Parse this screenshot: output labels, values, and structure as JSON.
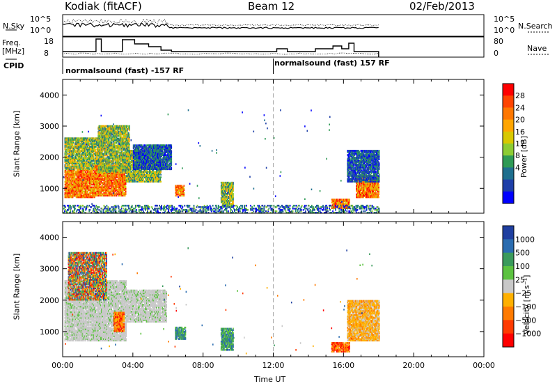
{
  "header": {
    "radar": "Kodiak (fitACF)",
    "beam": "Beam 12",
    "date": "02/Feb/2013"
  },
  "summary": {
    "nsky_label": "N.Sky",
    "nsearch_label": "N.Search",
    "nsky_ticks": [
      "10^5",
      "10^0"
    ],
    "nsearch_ticks": [
      "10^5",
      "10^0"
    ],
    "freq_label": "Freq.",
    "freq_unit": "[MHz]",
    "freq_ticks": [
      "18",
      "8"
    ],
    "nave_label": "Nave",
    "nave_ticks": [
      "80",
      "0"
    ],
    "cpid_label": "CPID",
    "cpid_segments": [
      {
        "label": "normalsound (fast) -157 RF",
        "start_hour": 0,
        "end_hour": 12
      },
      {
        "label": "normalsound (fast) 157 RF",
        "start_hour": 12,
        "end_hour": 24
      }
    ]
  },
  "chart_data": [
    {
      "type": "heatmap",
      "name": "power-panel",
      "ylabel": "Slant Range [km]",
      "xlabel": "",
      "x_range_hours": [
        0,
        24
      ],
      "ylim": [
        200,
        4500
      ],
      "yticks": [
        "1000",
        "2000",
        "3000",
        "4000"
      ],
      "colorbar": {
        "label": "Power [dB]",
        "ticks": [
          "28",
          "24",
          "20",
          "16",
          "12",
          "8",
          "4"
        ],
        "colors": [
          "#ff0000",
          "#ff4400",
          "#ff7700",
          "#ffa500",
          "#d8c800",
          "#8ccc33",
          "#2e9a55",
          "#1e6f8e",
          "#1e3fa8",
          "#0000ff"
        ]
      },
      "regions": [
        {
          "t0": 0.1,
          "t1": 1.8,
          "r0": 700,
          "r1": 1600,
          "level": "high"
        },
        {
          "t0": 0.1,
          "t1": 2.0,
          "r0": 1600,
          "r1": 2600,
          "level": "mid"
        },
        {
          "t0": 1.8,
          "t1": 3.6,
          "r0": 750,
          "r1": 1700,
          "level": "high"
        },
        {
          "t0": 2.0,
          "t1": 3.8,
          "r0": 1500,
          "r1": 3000,
          "level": "mid"
        },
        {
          "t0": 3.6,
          "t1": 5.6,
          "r0": 1200,
          "r1": 2200,
          "level": "mid"
        },
        {
          "t0": 4.0,
          "t1": 6.2,
          "r0": 1600,
          "r1": 2400,
          "level": "low"
        },
        {
          "t0": 6.4,
          "t1": 6.9,
          "r0": 750,
          "r1": 1100,
          "level": "high"
        },
        {
          "t0": 9.0,
          "t1": 9.7,
          "r0": 400,
          "r1": 1200,
          "level": "mid"
        },
        {
          "t0": 15.3,
          "t1": 16.3,
          "r0": 350,
          "r1": 650,
          "level": "high"
        },
        {
          "t0": 16.7,
          "t1": 18.0,
          "r0": 700,
          "r1": 1400,
          "level": "high"
        },
        {
          "t0": 16.2,
          "t1": 18.0,
          "r0": 1200,
          "r1": 2200,
          "level": "low"
        },
        {
          "t0": 0.0,
          "t1": 18.0,
          "r0": 200,
          "r1": 450,
          "level": "ground"
        }
      ]
    },
    {
      "type": "heatmap",
      "name": "velocity-panel",
      "ylabel": "Slant Range [km]",
      "xlabel": "Time UT",
      "x_range_hours": [
        0,
        24
      ],
      "xticks": [
        "00:00",
        "04:00",
        "08:00",
        "12:00",
        "16:00",
        "20:00",
        "00:00"
      ],
      "ylim": [
        200,
        4500
      ],
      "yticks": [
        "1000",
        "2000",
        "3000",
        "4000"
      ],
      "colorbar": {
        "label": "Velocity [m s⁻¹]",
        "ticks": [
          "1000",
          "500",
          "100",
          "25",
          "−25",
          "−100",
          "−500",
          "−1000"
        ],
        "colors": [
          "#1f3fa0",
          "#2a6cb0",
          "#3a9a5c",
          "#5cc240",
          "#c8c8c8",
          "#ffb000",
          "#ff7a00",
          "#ff3a00",
          "#ff0000"
        ]
      },
      "regions": [
        {
          "t0": 0.1,
          "t1": 3.6,
          "r0": 700,
          "r1": 2600,
          "level": "ground"
        },
        {
          "t0": 3.6,
          "t1": 5.9,
          "r0": 1300,
          "r1": 2300,
          "level": "ground"
        },
        {
          "t0": 2.9,
          "t1": 3.5,
          "r0": 1000,
          "r1": 1600,
          "level": "neg"
        },
        {
          "t0": 0.3,
          "t1": 2.5,
          "r0": 2000,
          "r1": 3500,
          "level": "mixed"
        },
        {
          "t0": 6.4,
          "t1": 7.0,
          "r0": 750,
          "r1": 1150,
          "level": "pos"
        },
        {
          "t0": 9.0,
          "t1": 9.7,
          "r0": 400,
          "r1": 1100,
          "level": "pos"
        },
        {
          "t0": 15.3,
          "t1": 16.3,
          "r0": 350,
          "r1": 650,
          "level": "neg"
        },
        {
          "t0": 16.2,
          "t1": 18.0,
          "r0": 700,
          "r1": 2000,
          "level": "negmix"
        }
      ]
    }
  ]
}
